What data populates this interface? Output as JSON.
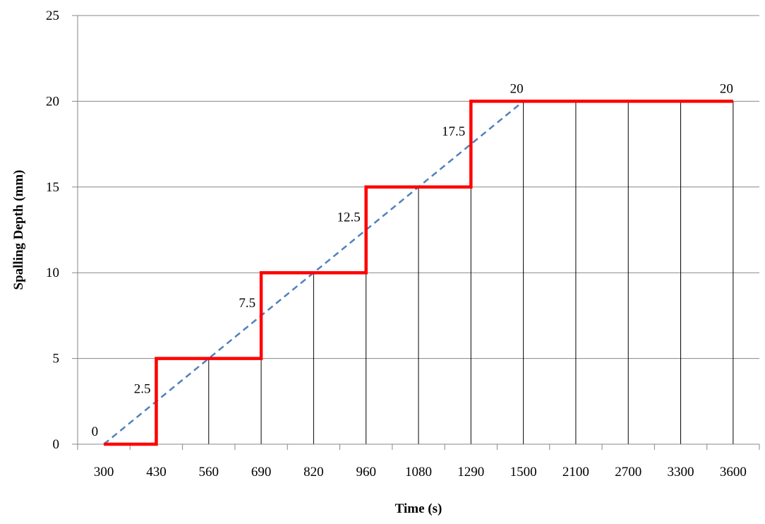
{
  "chart_data": {
    "type": "line",
    "title": "",
    "xlabel": "Time (s)",
    "ylabel": "Spalling Depth (mm)",
    "categories": [
      "300",
      "430",
      "560",
      "690",
      "820",
      "960",
      "1080",
      "1290",
      "1500",
      "2100",
      "2700",
      "3300",
      "3600"
    ],
    "ylim": [
      0,
      25
    ],
    "yticks": [
      0,
      5,
      10,
      15,
      20,
      25
    ],
    "grid": {
      "horizontal": true,
      "vertical_drop_lines": true
    },
    "legend": "none",
    "series": [
      {
        "style": "step",
        "color": "#ff0000",
        "values": [
          0,
          5,
          5,
          10,
          10,
          15,
          15,
          20,
          20,
          20,
          20,
          20,
          20
        ],
        "step_points": [
          [
            0,
            0
          ],
          [
            1,
            0
          ],
          [
            1,
            5
          ],
          [
            3,
            5
          ],
          [
            3,
            10
          ],
          [
            5,
            10
          ],
          [
            5,
            15
          ],
          [
            7,
            15
          ],
          [
            7,
            20
          ],
          [
            12,
            20
          ]
        ]
      },
      {
        "style": "dashed",
        "color": "#4f81bd",
        "points": [
          [
            0,
            0
          ],
          [
            8,
            20
          ]
        ]
      }
    ],
    "data_labels": [
      {
        "text": "0",
        "x": 0,
        "y": 0
      },
      {
        "text": "2.5",
        "x": 1,
        "y": 2.5
      },
      {
        "text": "7.5",
        "x": 3,
        "y": 7.5
      },
      {
        "text": "12.5",
        "x": 5,
        "y": 12.5
      },
      {
        "text": "17.5",
        "x": 7,
        "y": 17.5
      },
      {
        "text": "20",
        "x": 8,
        "y": 20
      },
      {
        "text": "20",
        "x": 12,
        "y": 20
      }
    ]
  }
}
